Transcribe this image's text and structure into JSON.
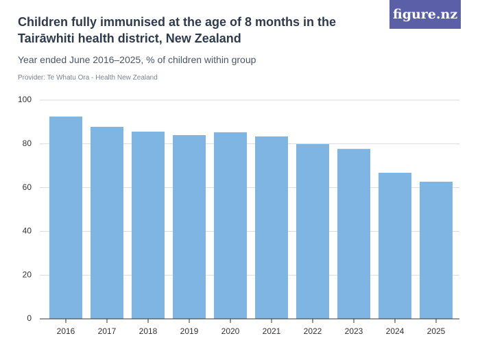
{
  "brand": "figure.nz",
  "chart_data": {
    "type": "bar",
    "title": "Children fully immunised at the age of 8 months in the Tairāwhiti health district, New Zealand",
    "subtitle": "Year ended June 2016–2025, % of children within group",
    "source": "Provider: Te Whatu Ora - Health New Zealand",
    "categories": [
      "2016",
      "2017",
      "2018",
      "2019",
      "2020",
      "2021",
      "2022",
      "2023",
      "2024",
      "2025"
    ],
    "values": [
      92.5,
      87.8,
      85.6,
      84.0,
      85.3,
      83.4,
      79.9,
      77.7,
      66.8,
      62.7
    ],
    "color": "#7eb5e3",
    "ylim": [
      0,
      100
    ],
    "yticks": [
      0,
      20,
      40,
      60,
      80,
      100
    ],
    "grid": true
  }
}
